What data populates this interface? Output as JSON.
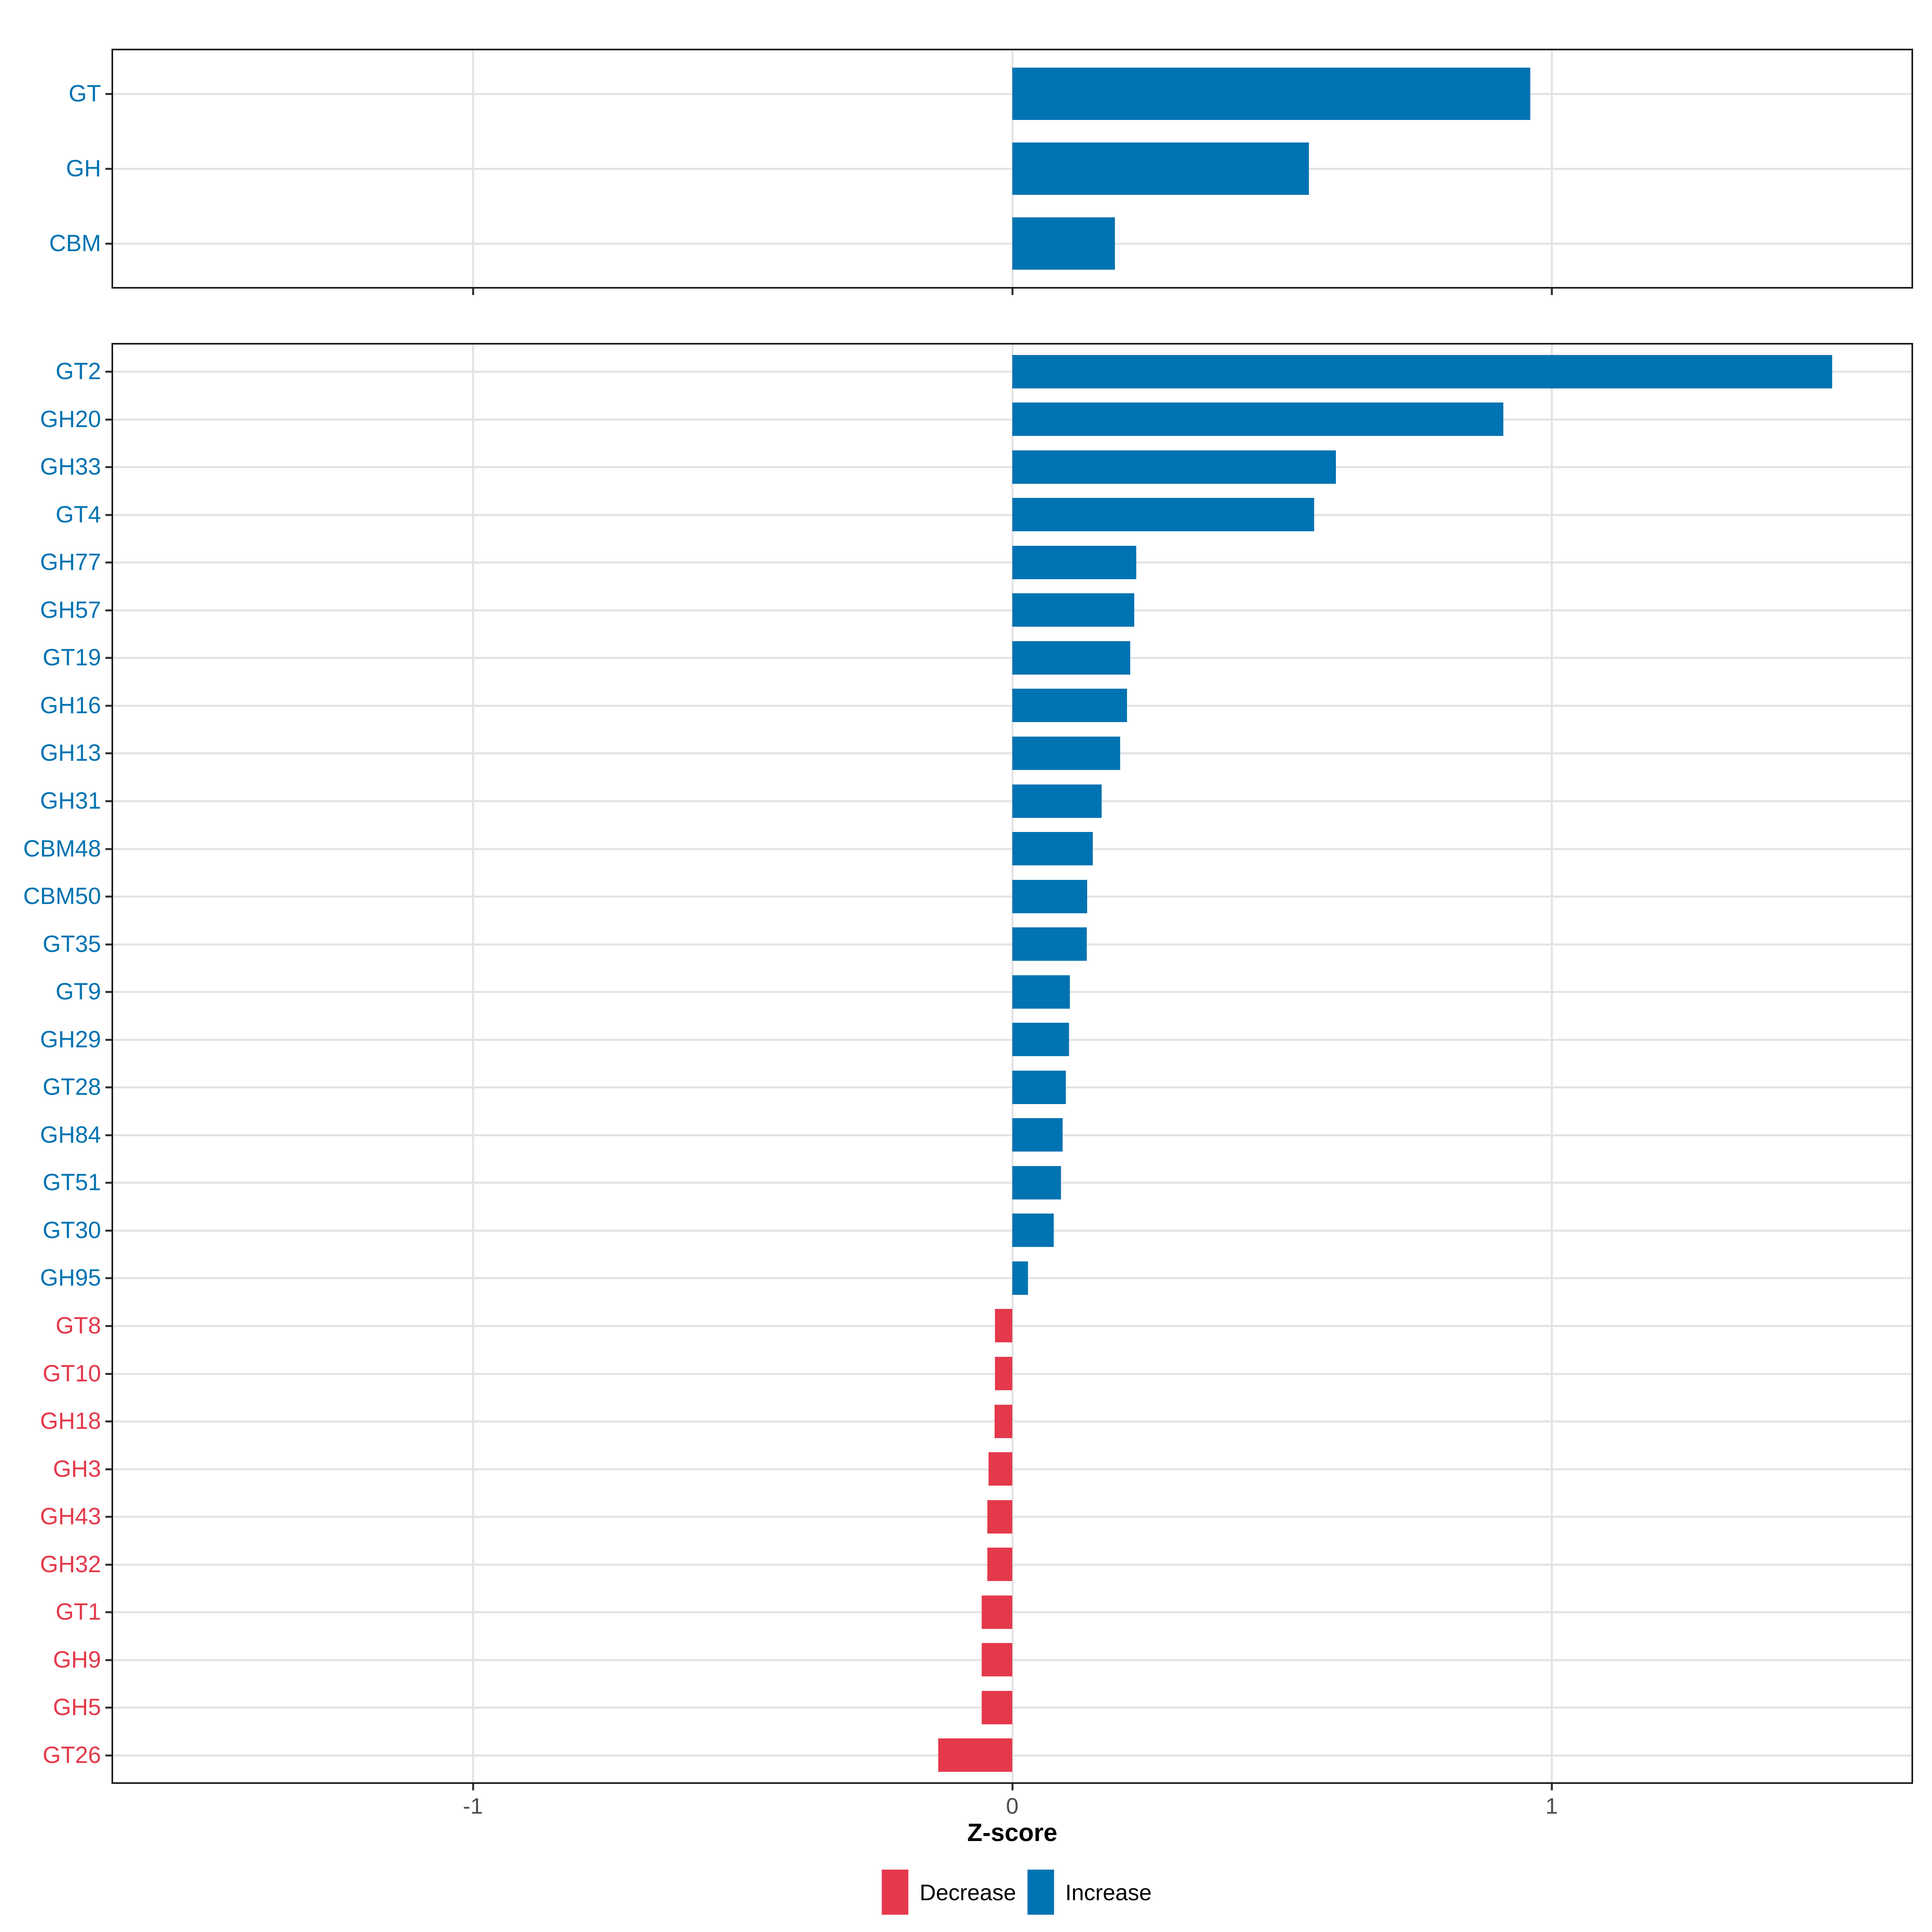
{
  "colors": {
    "increase": "#0073B2",
    "decrease": "#E4394B",
    "axis_text": "#4D4D4D",
    "axis_title": "#000000",
    "gridline": "#E3E3E3",
    "panel_border": "#1A1A1A",
    "background": "#FFFFFF"
  },
  "chart_data": {
    "type": "bar",
    "orientation": "horizontal",
    "title": "",
    "xlabel": "Z-score",
    "ylabel": "",
    "xlim": [
      -1.67,
      1.67
    ],
    "x_ticks": [
      -1,
      0,
      1
    ],
    "x_tick_labels": [
      "-1",
      "0",
      "1"
    ],
    "grid": true,
    "legend_position": "bottom",
    "legend": [
      {
        "label": "Decrease",
        "color": "#E4394B"
      },
      {
        "label": "Increase",
        "color": "#0073B2"
      }
    ],
    "panels": [
      {
        "name": "enzyme-class",
        "categories": [
          "GT",
          "GH",
          "CBM"
        ],
        "values": [
          0.96,
          0.55,
          0.19
        ]
      },
      {
        "name": "enzyme-family",
        "categories": [
          "GT2",
          "GH20",
          "GH33",
          "GT4",
          "GH77",
          "GH57",
          "GT19",
          "GH16",
          "GH13",
          "GH31",
          "CBM48",
          "CBM50",
          "GT35",
          "GT9",
          "GH29",
          "GT28",
          "GH84",
          "GT51",
          "GT30",
          "GH95",
          "GT8",
          "GT10",
          "GH18",
          "GH3",
          "GH43",
          "GH32",
          "GT1",
          "GH9",
          "GH5",
          "GT26"
        ],
        "values": [
          1.52,
          0.91,
          0.6,
          0.56,
          0.23,
          0.226,
          0.219,
          0.213,
          0.2,
          0.166,
          0.149,
          0.139,
          0.138,
          0.107,
          0.105,
          0.099,
          0.093,
          0.09,
          0.077,
          0.029,
          -0.032,
          -0.032,
          -0.033,
          -0.044,
          -0.046,
          -0.046,
          -0.057,
          -0.057,
          -0.057,
          -0.137
        ]
      }
    ]
  }
}
